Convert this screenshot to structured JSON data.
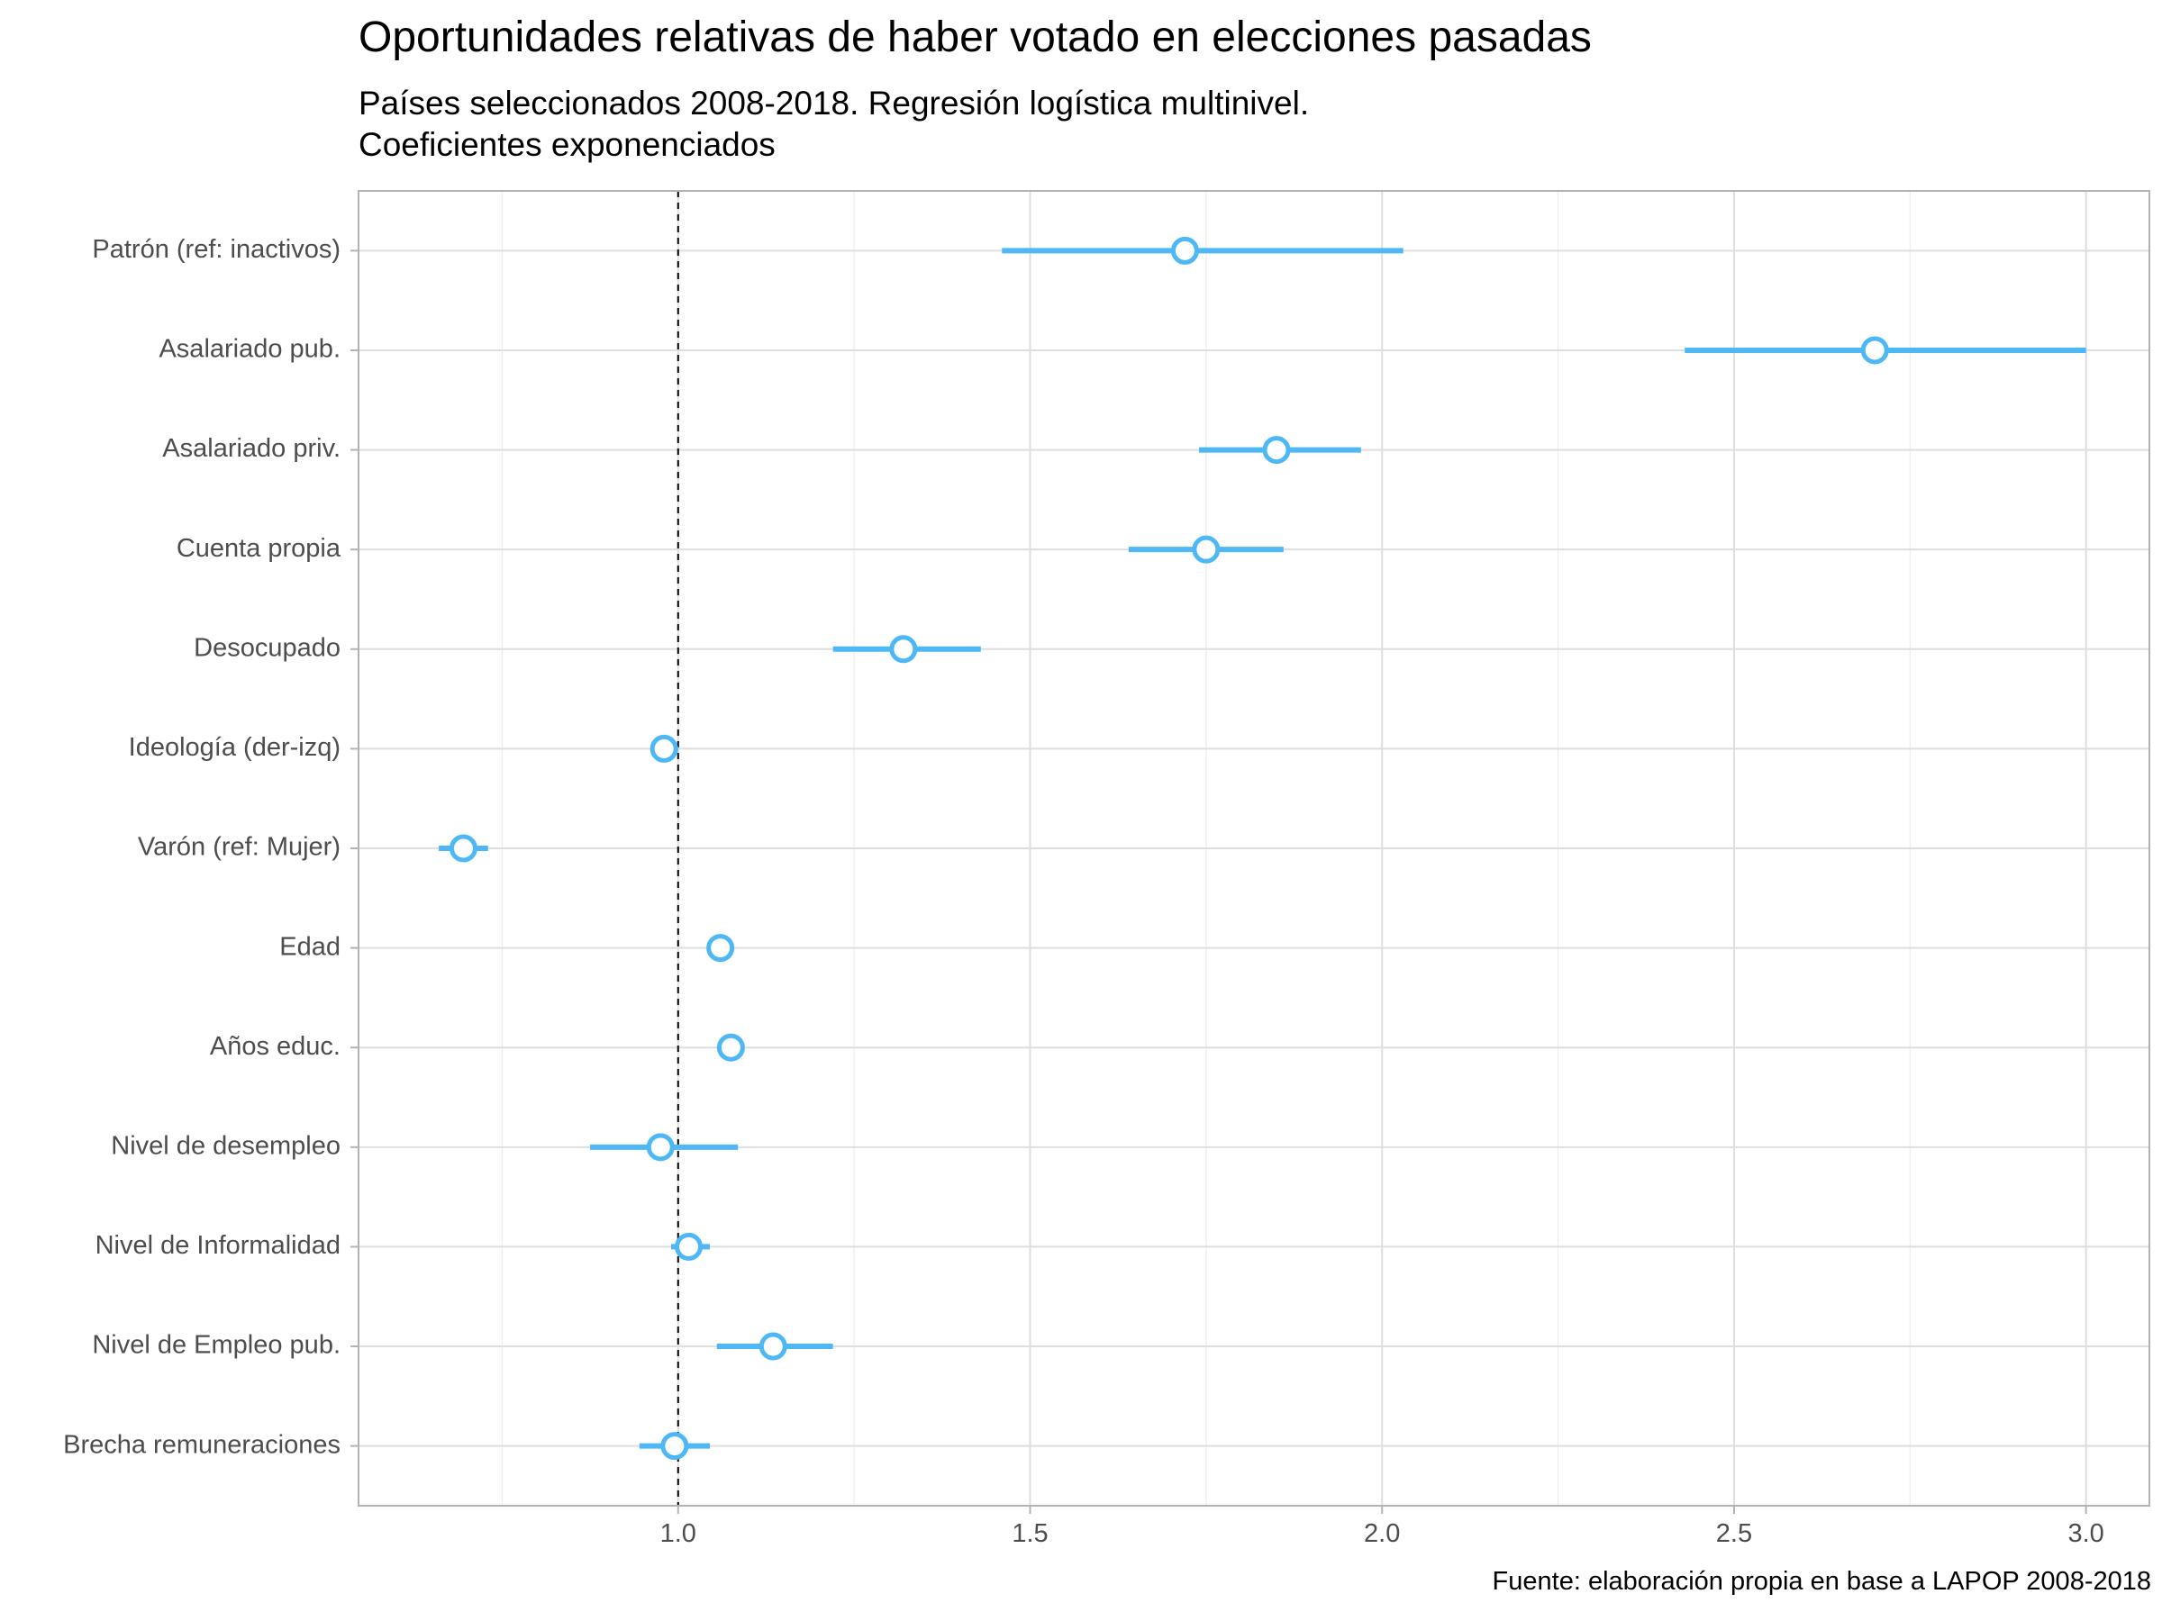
{
  "chart_data": {
    "type": "dot-whisker",
    "title": "Oportunidades relativas de haber votado en elecciones pasadas",
    "subtitle_lines": [
      "Países seleccionados 2008-2018. Regresión logística multinivel.",
      "Coeficientes exponenciados"
    ],
    "caption": "Fuente: elaboración propia en base a LAPOP 2008-2018",
    "xlabel": "",
    "ylabel": "",
    "xlim": [
      0.546,
      3.09
    ],
    "x_ticks": [
      1.0,
      1.5,
      2.0,
      2.5,
      3.0
    ],
    "x_tick_labels": [
      "1.0",
      "1.5",
      "2.0",
      "2.5",
      "3.0"
    ],
    "reference_line": 1.0,
    "grid": true,
    "color": "#4db8f5",
    "terms": [
      {
        "label": "Patrón (ref: inactivos)",
        "estimate": 1.72,
        "low": 1.46,
        "high": 2.03
      },
      {
        "label": "Asalariado pub.",
        "estimate": 2.7,
        "low": 2.43,
        "high": 3.0
      },
      {
        "label": "Asalariado priv.",
        "estimate": 1.85,
        "low": 1.74,
        "high": 1.97
      },
      {
        "label": "Cuenta propia",
        "estimate": 1.75,
        "low": 1.64,
        "high": 1.86
      },
      {
        "label": "Desocupado",
        "estimate": 1.32,
        "low": 1.22,
        "high": 1.43
      },
      {
        "label": "Ideología (der-izq)",
        "estimate": 0.98,
        "low": 0.97,
        "high": 1.0
      },
      {
        "label": "Varón (ref: Mujer)",
        "estimate": 0.695,
        "low": 0.66,
        "high": 0.73
      },
      {
        "label": "Edad",
        "estimate": 1.06,
        "low": 1.05,
        "high": 1.07
      },
      {
        "label": "Años educ.",
        "estimate": 1.075,
        "low": 1.07,
        "high": 1.08
      },
      {
        "label": "Nivel de desempleo",
        "estimate": 0.975,
        "low": 0.875,
        "high": 1.085
      },
      {
        "label": "Nivel de Informalidad",
        "estimate": 1.015,
        "low": 0.99,
        "high": 1.045
      },
      {
        "label": "Nivel de Empleo pub.",
        "estimate": 1.135,
        "low": 1.055,
        "high": 1.22
      },
      {
        "label": "Brecha remuneraciones",
        "estimate": 0.995,
        "low": 0.945,
        "high": 1.045
      }
    ]
  }
}
